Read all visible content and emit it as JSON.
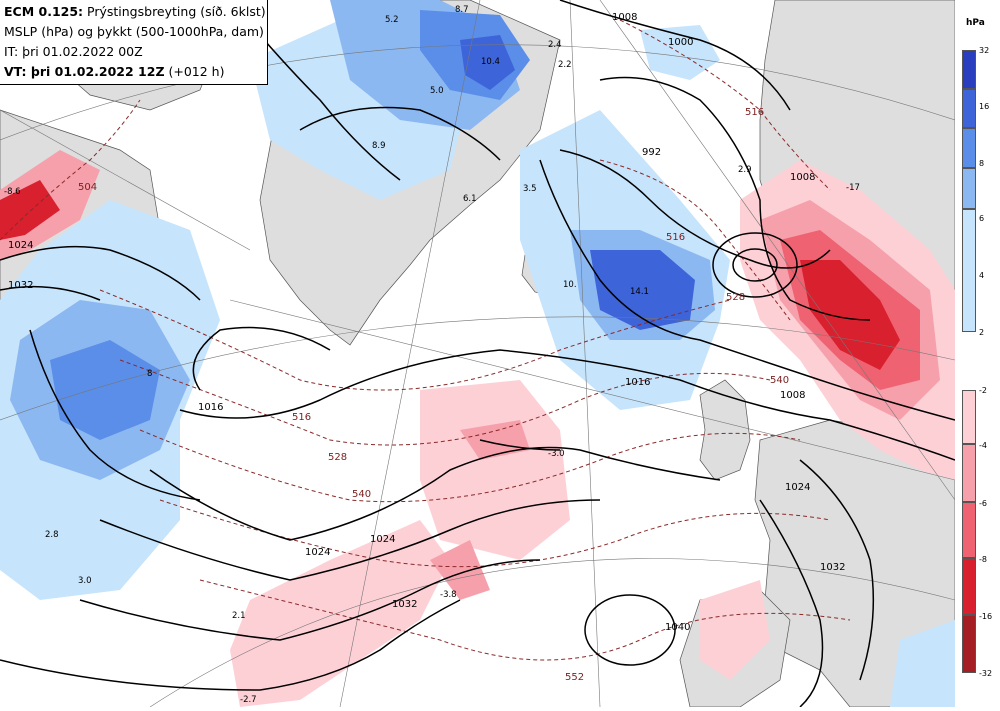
{
  "header": {
    "line1_bold": "ECM 0.125:",
    "line1_rest": " Prýstingsbreyting (síð. 6klst)",
    "line2": "MSLP (hPa) og þykkt (500-1000hPa, dam)",
    "line3": "IT: þri 01.02.2022 00Z",
    "line4_bold": "VT: þri 01.02.2022 12Z",
    "line4_rest": " (+012 h)"
  },
  "legend": {
    "unit": "hPa",
    "positive": [
      {
        "label": "32",
        "color": "#2a3fbf"
      },
      {
        "label": "16",
        "color": "#3d64d8"
      },
      {
        "label": "8",
        "color": "#5a8ee8"
      },
      {
        "label": "6",
        "color": "#8cb8f2"
      },
      {
        "label": "4",
        "color": "#c6e4fb"
      },
      {
        "label": "2",
        "color": ""
      }
    ],
    "negative": [
      {
        "label": "-2",
        "color": "#fdd0d6"
      },
      {
        "label": "-4",
        "color": "#f6a0ac"
      },
      {
        "label": "-6",
        "color": "#ee6272"
      },
      {
        "label": "-8",
        "color": "#d9202e"
      },
      {
        "label": "-16",
        "color": "#a51e24"
      },
      {
        "label": "-32",
        "color": ""
      }
    ]
  },
  "isobar_labels": [
    {
      "text": "1000",
      "name": "isobar-label-1000-north"
    },
    {
      "text": "1008",
      "name": "isobar-label-1008-north"
    },
    {
      "text": "992",
      "name": "isobar-label-992"
    },
    {
      "text": "1016",
      "name": "isobar-label-1016-mid"
    },
    {
      "text": "1008",
      "name": "isobar-label-1008-east"
    },
    {
      "text": "1016",
      "name": "isobar-label-1016-west"
    },
    {
      "text": "1024",
      "name": "isobar-label-1024-a"
    },
    {
      "text": "1024",
      "name": "isobar-label-1024-b"
    },
    {
      "text": "1032",
      "name": "isobar-label-1032-south"
    },
    {
      "text": "1040",
      "name": "isobar-label-1040"
    },
    {
      "text": "1024",
      "name": "isobar-label-1024-nw"
    },
    {
      "text": "1032",
      "name": "isobar-label-1032-nw"
    },
    {
      "text": "1024",
      "name": "isobar-label-1024-se"
    },
    {
      "text": "1032",
      "name": "isobar-label-1032-se"
    },
    {
      "text": "1008",
      "name": "isobar-label-1008-scand"
    }
  ],
  "thickness_labels": [
    {
      "text": "516",
      "name": "thickness-label-516-west"
    },
    {
      "text": "528",
      "name": "thickness-label-528"
    },
    {
      "text": "540",
      "name": "thickness-label-540"
    },
    {
      "text": "552",
      "name": "thickness-label-552"
    },
    {
      "text": "516",
      "name": "thickness-label-516-mid"
    },
    {
      "text": "516",
      "name": "thickness-label-516-north"
    },
    {
      "text": "528",
      "name": "thickness-label-528-east"
    },
    {
      "text": "540",
      "name": "thickness-label-540-east"
    },
    {
      "text": "504",
      "name": "thickness-label-504"
    }
  ],
  "change_labels": [
    {
      "text": "8.7",
      "name": "change-label-8-7"
    },
    {
      "text": "5.2",
      "name": "change-label-5-2"
    },
    {
      "text": "10.4",
      "name": "change-label-10-4"
    },
    {
      "text": "5.0",
      "name": "change-label-5-0"
    },
    {
      "text": "2.4",
      "name": "change-label-2-4"
    },
    {
      "text": "2.2",
      "name": "change-label-2-2"
    },
    {
      "text": "8.9",
      "name": "change-label-8-9"
    },
    {
      "text": "3.5",
      "name": "change-label-3-5"
    },
    {
      "text": "6.1",
      "name": "change-label-6-1"
    },
    {
      "text": "14.1",
      "name": "change-label-14-1"
    },
    {
      "text": "10.",
      "name": "change-label-10"
    },
    {
      "text": "2.9",
      "name": "change-label-2-9"
    },
    {
      "text": "-8.6",
      "name": "change-label-neg-8-6"
    },
    {
      "text": "-17",
      "name": "change-label-neg-17"
    },
    {
      "text": "-3.0",
      "name": "change-label-neg-3-0"
    },
    {
      "text": "-3.8",
      "name": "change-label-neg-3-8"
    },
    {
      "text": "-2.7",
      "name": "change-label-neg-2-7"
    },
    {
      "text": "2.8",
      "name": "change-label-2-8"
    },
    {
      "text": "3.0",
      "name": "change-label-3-0"
    },
    {
      "text": "2.1",
      "name": "change-label-2-1"
    },
    {
      "text": "8",
      "name": "change-label-8"
    }
  ]
}
